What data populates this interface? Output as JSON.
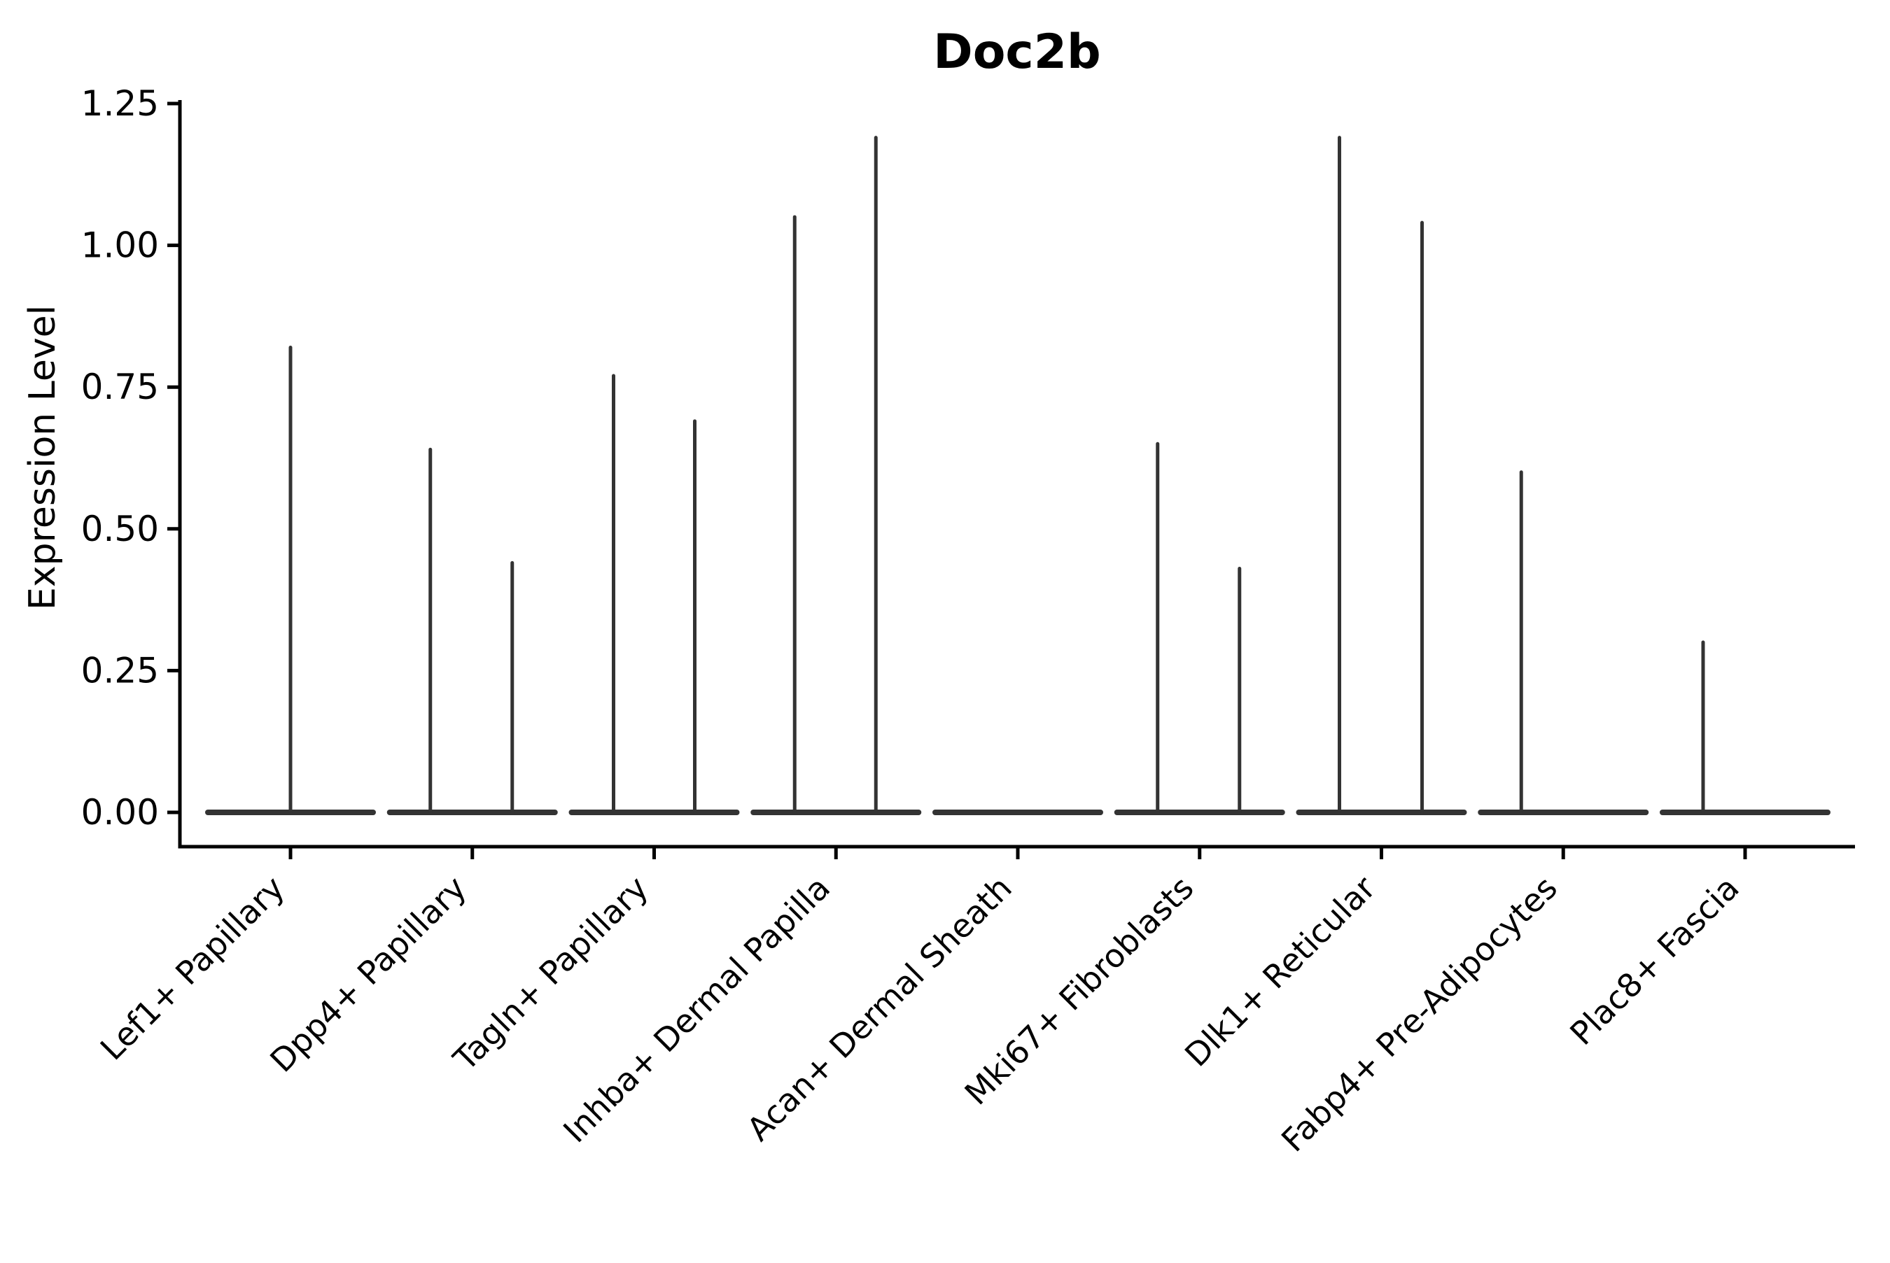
{
  "chart_data": {
    "type": "violin",
    "title": "Doc2b",
    "ylabel": "Expression Level",
    "xlabel": "",
    "background": "#ffffff",
    "axis_color": "#000000",
    "violin_color": "#333333",
    "grid": false,
    "legend": false,
    "ylim": [
      -0.06,
      1.26
    ],
    "yticks": [
      "0.00",
      "0.25",
      "0.50",
      "0.75",
      "1.00",
      "1.25"
    ],
    "categories": [
      "Lef1+ Papillary",
      "Dpp4+ Papillary",
      "Tagln+ Papillary",
      "Inhba+ Dermal Papilla",
      "Acan+ Dermal Sheath",
      "Mki67+ Fibroblasts",
      "Dlk1+ Reticular",
      "Fabp4+ Pre-Adipocytes",
      "Plac8+ Fascia"
    ],
    "violins": [
      {
        "category": "Lef1+ Papillary",
        "spikes": [
          {
            "offset": 0,
            "max": 0.82
          }
        ]
      },
      {
        "category": "Dpp4+ Papillary",
        "spikes": [
          {
            "offset": -60,
            "max": 0.64
          },
          {
            "offset": 57,
            "max": 0.44
          }
        ]
      },
      {
        "category": "Tagln+ Papillary",
        "spikes": [
          {
            "offset": -58,
            "max": 0.77
          },
          {
            "offset": 58,
            "max": 0.69
          }
        ]
      },
      {
        "category": "Inhba+ Dermal Papilla",
        "spikes": [
          {
            "offset": -59,
            "max": 1.05
          },
          {
            "offset": 57,
            "max": 1.19
          }
        ]
      },
      {
        "category": "Acan+ Dermal Sheath",
        "spikes": []
      },
      {
        "category": "Mki67+ Fibroblasts",
        "spikes": [
          {
            "offset": -60,
            "max": 0.65
          },
          {
            "offset": 57,
            "max": 0.43
          }
        ]
      },
      {
        "category": "Dlk1+ Reticular",
        "spikes": [
          {
            "offset": -60,
            "max": 1.19
          },
          {
            "offset": 58,
            "max": 1.04
          }
        ]
      },
      {
        "category": "Fabp4+ Pre-Adipocytes",
        "spikes": [
          {
            "offset": -60,
            "max": 0.6
          }
        ]
      },
      {
        "category": "Plac8+ Fascia",
        "spikes": [
          {
            "offset": -60,
            "max": 0.3
          }
        ]
      }
    ]
  }
}
